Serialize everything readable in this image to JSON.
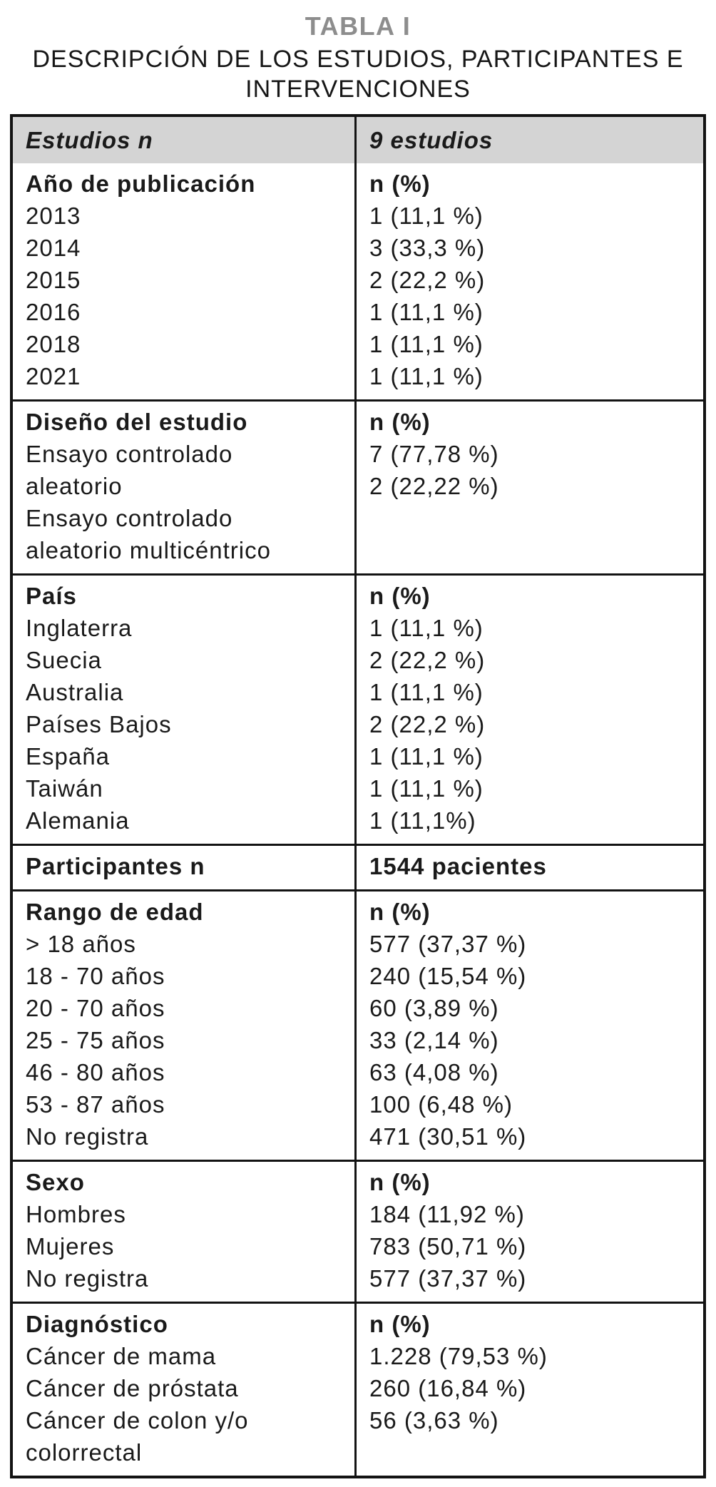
{
  "title": "TABLA I",
  "subtitle": "DESCRIPCIÓN DE LOS ESTUDIOS, PARTICIPANTES E INTERVENCIONES",
  "table": {
    "header": {
      "left": "Estudios n",
      "right": "9 estudios"
    },
    "sections": [
      {
        "label": "Año de publicación",
        "items": [
          "2013",
          "2014",
          "2015",
          "2016",
          "2018",
          "2021"
        ],
        "value_label": "n (%)",
        "values": [
          "1 (11,1 %)",
          "3 (33,3 %)",
          "2 (22,2 %)",
          "1 (11,1 %)",
          "1 (11,1 %)",
          "1 (11,1 %)"
        ]
      },
      {
        "label": "Diseño del estudio",
        "items": [
          "Ensayo controlado aleatorio",
          "Ensayo controlado aleatorio multicéntrico"
        ],
        "value_label": "n (%)",
        "values": [
          "7 (77,78 %)",
          "2 (22,22 %)"
        ]
      },
      {
        "label": "País",
        "items": [
          "Inglaterra",
          "Suecia",
          "Australia",
          "Países Bajos",
          "España",
          "Taiwán",
          "Alemania"
        ],
        "value_label": "n (%)",
        "values": [
          "1 (11,1 %)",
          "2 (22,2 %)",
          "1 (11,1 %)",
          "2 (22,2 %)",
          "1 (11,1 %)",
          "1 (11,1 %)",
          "1 (11,1%)"
        ]
      },
      {
        "label": "Participantes n",
        "items": [],
        "value_label": "1544 pacientes",
        "values": []
      },
      {
        "label": "Rango de edad",
        "items": [
          "> 18 años",
          "18 - 70 años",
          "20 - 70 años",
          "25 - 75 años",
          "46 - 80 años",
          "53 - 87 años",
          "No registra"
        ],
        "value_label": "n (%)",
        "values": [
          "577 (37,37 %)",
          "240 (15,54 %)",
          "60 (3,89 %)",
          "33 (2,14 %)",
          "63 (4,08 %)",
          "100 (6,48 %)",
          "471 (30,51 %)"
        ]
      },
      {
        "label": "Sexo",
        "items": [
          "Hombres",
          "Mujeres",
          "No registra"
        ],
        "value_label": "n (%)",
        "values": [
          "184 (11,92 %)",
          "783 (50,71 %)",
          "577 (37,37 %)"
        ]
      },
      {
        "label": "Diagnóstico",
        "items": [
          "Cáncer de mama",
          "Cáncer de próstata",
          "Cáncer de colon y/o colorrectal"
        ],
        "value_label": "n (%)",
        "values": [
          "1.228 (79,53 %)",
          "260 (16,84 %)",
          "56 (3,63 %)"
        ]
      }
    ]
  }
}
